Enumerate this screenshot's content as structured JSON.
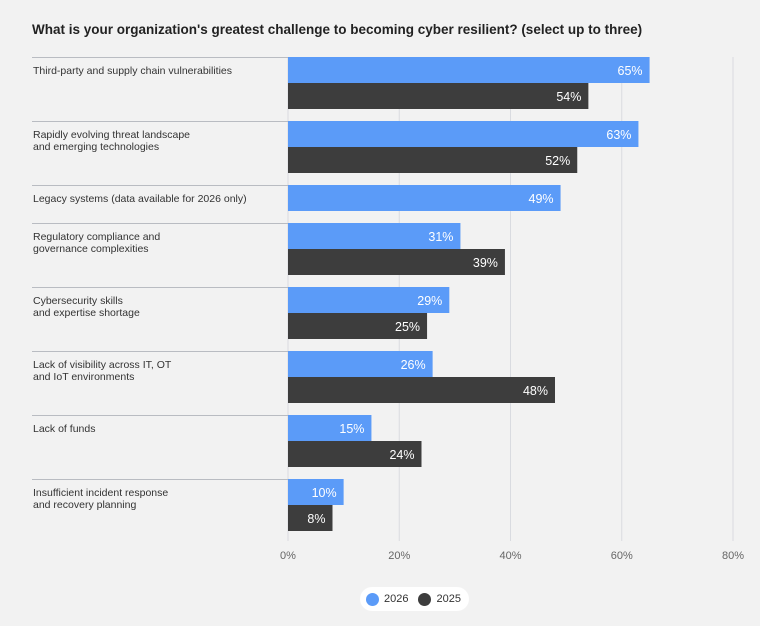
{
  "chart_data": {
    "type": "bar",
    "orientation": "horizontal",
    "title": "What is your organization's greatest challenge to becoming cyber resilient? (select up to three)",
    "categories": [
      [
        "Third-party and supply chain vulnerabilities"
      ],
      [
        "Rapidly evolving threat landscape",
        "and emerging technologies"
      ],
      [
        "Legacy systems (data available for 2026 only)"
      ],
      [
        "Regulatory compliance and",
        "governance complexities"
      ],
      [
        "Cybersecurity skills",
        "and expertise shortage"
      ],
      [
        "Lack of visibility across IT, OT",
        "and IoT environments"
      ],
      [
        "Lack of funds"
      ],
      [
        "Insufficient incident response",
        "and recovery planning"
      ]
    ],
    "series": [
      {
        "name": "2026",
        "color": "#5b9bf8",
        "values": [
          65,
          63,
          49,
          31,
          29,
          26,
          15,
          10
        ]
      },
      {
        "name": "2025",
        "color": "#3d3d3d",
        "values": [
          54,
          52,
          null,
          39,
          25,
          48,
          24,
          8
        ]
      }
    ],
    "xlim": [
      0,
      80
    ],
    "xticks": [
      0,
      20,
      40,
      60,
      80
    ],
    "tick_suffix": "%",
    "value_suffix": "%",
    "grid": true,
    "legend_position": "bottom-center"
  }
}
